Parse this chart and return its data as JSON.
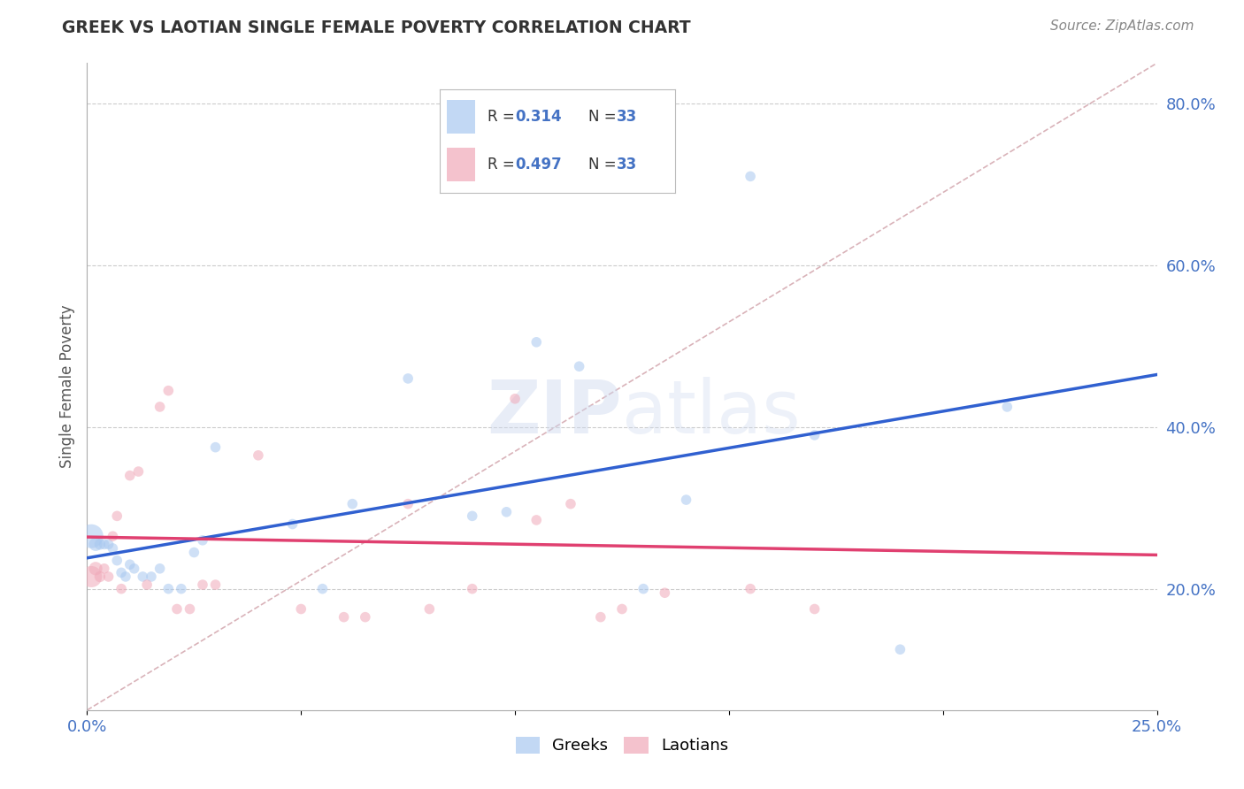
{
  "title": "GREEK VS LAOTIAN SINGLE FEMALE POVERTY CORRELATION CHART",
  "source": "Source: ZipAtlas.com",
  "ylabel": "Single Female Poverty",
  "xlim": [
    0.0,
    0.25
  ],
  "ylim": [
    0.05,
    0.85
  ],
  "background_color": "#ffffff",
  "greek_color": "#a8c8f0",
  "laotian_color": "#f0a8b8",
  "greek_line_color": "#3060d0",
  "laotian_line_color": "#e04070",
  "diagonal_color": "#d0a0a8",
  "watermark": "ZIPatlas",
  "greeks_x": [
    0.001,
    0.002,
    0.003,
    0.004,
    0.005,
    0.006,
    0.007,
    0.008,
    0.009,
    0.01,
    0.011,
    0.013,
    0.015,
    0.017,
    0.019,
    0.022,
    0.025,
    0.027,
    0.03,
    0.048,
    0.055,
    0.062,
    0.075,
    0.09,
    0.098,
    0.105,
    0.115,
    0.13,
    0.14,
    0.155,
    0.17,
    0.19,
    0.215
  ],
  "greeks_y": [
    0.265,
    0.255,
    0.255,
    0.255,
    0.255,
    0.25,
    0.235,
    0.22,
    0.215,
    0.23,
    0.225,
    0.215,
    0.215,
    0.225,
    0.2,
    0.2,
    0.245,
    0.26,
    0.375,
    0.28,
    0.2,
    0.305,
    0.46,
    0.29,
    0.295,
    0.505,
    0.475,
    0.2,
    0.31,
    0.71,
    0.39,
    0.125,
    0.425
  ],
  "greeks_size": [
    380,
    120,
    80,
    70,
    70,
    70,
    70,
    70,
    70,
    70,
    70,
    70,
    70,
    70,
    70,
    70,
    70,
    70,
    70,
    70,
    70,
    70,
    70,
    70,
    70,
    70,
    70,
    70,
    70,
    70,
    70,
    70,
    70
  ],
  "laotians_x": [
    0.001,
    0.002,
    0.003,
    0.004,
    0.005,
    0.006,
    0.007,
    0.008,
    0.01,
    0.012,
    0.014,
    0.017,
    0.019,
    0.021,
    0.024,
    0.027,
    0.03,
    0.04,
    0.05,
    0.06,
    0.065,
    0.075,
    0.08,
    0.09,
    0.095,
    0.1,
    0.105,
    0.113,
    0.12,
    0.125,
    0.135,
    0.155,
    0.17
  ],
  "laotians_y": [
    0.215,
    0.225,
    0.215,
    0.225,
    0.215,
    0.265,
    0.29,
    0.2,
    0.34,
    0.345,
    0.205,
    0.425,
    0.445,
    0.175,
    0.175,
    0.205,
    0.205,
    0.365,
    0.175,
    0.165,
    0.165,
    0.305,
    0.175,
    0.2,
    0.7,
    0.435,
    0.285,
    0.305,
    0.165,
    0.175,
    0.195,
    0.2,
    0.175
  ],
  "laotians_size": [
    300,
    120,
    80,
    70,
    70,
    70,
    70,
    70,
    70,
    70,
    70,
    70,
    70,
    70,
    70,
    70,
    70,
    70,
    70,
    70,
    70,
    70,
    70,
    70,
    70,
    70,
    70,
    70,
    70,
    70,
    70,
    70,
    70
  ],
  "yticks_right": [
    0.2,
    0.4,
    0.6,
    0.8
  ],
  "yticklabels_right": [
    "20.0%",
    "40.0%",
    "60.0%",
    "80.0%"
  ],
  "xtick_positions": [
    0.0,
    0.05,
    0.1,
    0.15,
    0.2,
    0.25
  ],
  "xticklabels": [
    "0.0%",
    "",
    "",
    "",
    "",
    "25.0%"
  ]
}
